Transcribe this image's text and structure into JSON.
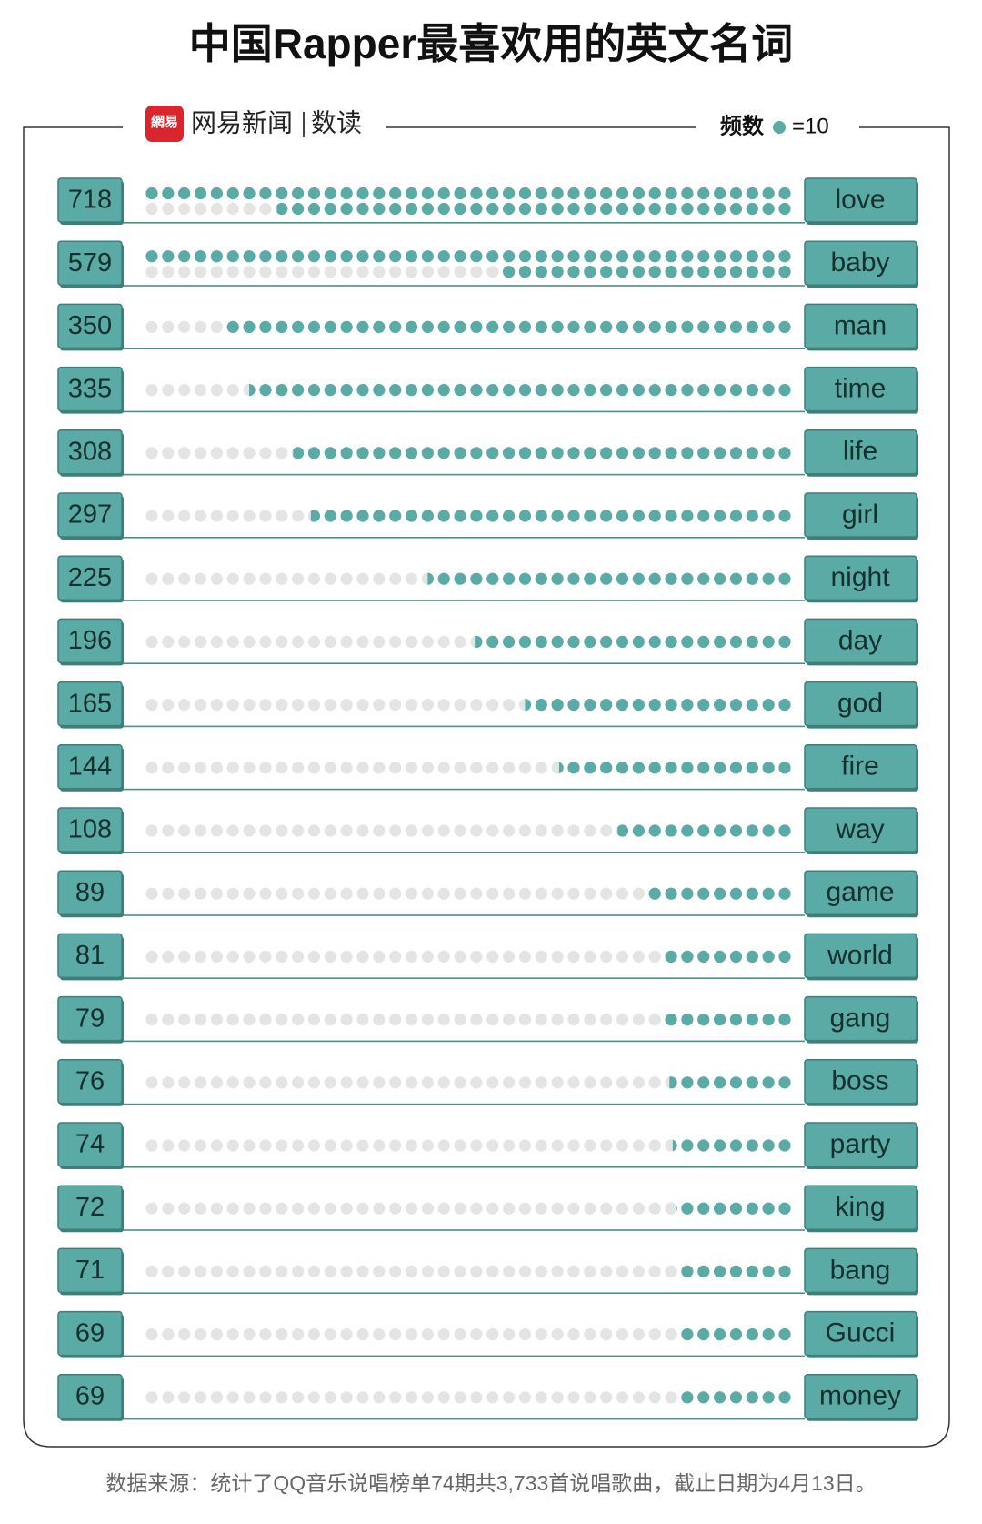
{
  "chart_data": {
    "type": "pictogram",
    "title": "中国Rapper最喜欢用的英文名词",
    "brand": {
      "logo": "網易",
      "name": "网易新闻",
      "column": "数读"
    },
    "legend": {
      "label": "频数",
      "unit_label": "=10",
      "unit": 10
    },
    "categories": [
      "love",
      "baby",
      "man",
      "time",
      "life",
      "girl",
      "night",
      "day",
      "god",
      "fire",
      "way",
      "game",
      "world",
      "gang",
      "boss",
      "party",
      "king",
      "bang",
      "Gucci",
      "money"
    ],
    "values": [
      718,
      579,
      350,
      335,
      308,
      297,
      225,
      196,
      165,
      144,
      108,
      89,
      81,
      79,
      76,
      74,
      72,
      71,
      69,
      69
    ],
    "color": "#5aaaa5",
    "empty_color": "#e4e4e4",
    "source": "数据来源：统计了QQ音乐说唱榜单74期共3,733首说唱歌曲，截止日期为4月13日。"
  }
}
